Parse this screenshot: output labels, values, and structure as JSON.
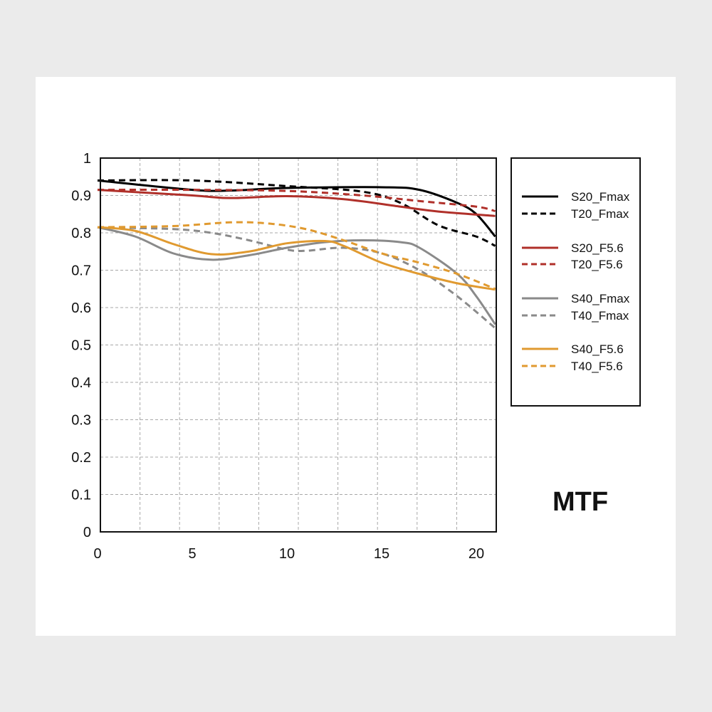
{
  "chart_data": {
    "type": "line",
    "title": "MTF",
    "xlabel": "",
    "ylabel": "",
    "xlim": [
      0,
      21
    ],
    "ylim": [
      0,
      1
    ],
    "grid": true,
    "legend_position": "right",
    "x_ticks": [
      "0",
      "5",
      "10",
      "15",
      "20"
    ],
    "y_ticks": [
      "0",
      "0.1",
      "0.2",
      "0.3",
      "0.4",
      "0.5",
      "0.6",
      "0.7",
      "0.8",
      "0.9",
      "1"
    ],
    "series": [
      {
        "name": "S20_Fmax",
        "color": "#000000",
        "dashed": false,
        "x": [
          0,
          5,
          7,
          10,
          15,
          17,
          19,
          20,
          21
        ],
        "y": [
          0.94,
          0.915,
          0.913,
          0.92,
          0.922,
          0.915,
          0.88,
          0.85,
          0.79
        ]
      },
      {
        "name": "T20_Fmax",
        "color": "#000000",
        "dashed": true,
        "x": [
          0,
          5,
          10,
          14,
          16,
          18,
          20,
          21
        ],
        "y": [
          0.94,
          0.94,
          0.925,
          0.91,
          0.88,
          0.82,
          0.79,
          0.765
        ]
      },
      {
        "name": "S20_F5.6",
        "color": "#b0302a",
        "dashed": false,
        "x": [
          0,
          5,
          7,
          10,
          13,
          16,
          18,
          21
        ],
        "y": [
          0.915,
          0.9,
          0.893,
          0.898,
          0.89,
          0.87,
          0.857,
          0.845
        ]
      },
      {
        "name": "T20_F5.6",
        "color": "#b0302a",
        "dashed": true,
        "x": [
          0,
          5,
          10,
          14,
          17,
          20,
          21
        ],
        "y": [
          0.915,
          0.915,
          0.912,
          0.9,
          0.885,
          0.87,
          0.858
        ]
      },
      {
        "name": "S40_Fmax",
        "color": "#8a8a8a",
        "dashed": false,
        "x": [
          0,
          2,
          4,
          6,
          8,
          10,
          12,
          14,
          16,
          17,
          19,
          20,
          21
        ],
        "y": [
          0.815,
          0.79,
          0.745,
          0.728,
          0.74,
          0.76,
          0.775,
          0.78,
          0.775,
          0.76,
          0.69,
          0.63,
          0.555
        ]
      },
      {
        "name": "T40_Fmax",
        "color": "#8a8a8a",
        "dashed": true,
        "x": [
          0,
          4,
          6,
          8,
          10,
          11,
          13,
          15,
          17,
          19,
          21
        ],
        "y": [
          0.815,
          0.81,
          0.8,
          0.78,
          0.755,
          0.752,
          0.76,
          0.745,
          0.7,
          0.63,
          0.545
        ]
      },
      {
        "name": "S40_F5.6",
        "color": "#e09a30",
        "dashed": false,
        "x": [
          0,
          2,
          4,
          6,
          8,
          10,
          12,
          13,
          15,
          17,
          19,
          21
        ],
        "y": [
          0.815,
          0.805,
          0.77,
          0.743,
          0.75,
          0.772,
          0.778,
          0.765,
          0.72,
          0.69,
          0.665,
          0.648
        ]
      },
      {
        "name": "T40_F5.6",
        "color": "#e09a30",
        "dashed": true,
        "x": [
          0,
          4,
          7,
          9,
          11,
          13,
          15,
          17,
          19,
          21
        ],
        "y": [
          0.815,
          0.818,
          0.828,
          0.825,
          0.81,
          0.78,
          0.745,
          0.72,
          0.69,
          0.65
        ]
      }
    ]
  }
}
